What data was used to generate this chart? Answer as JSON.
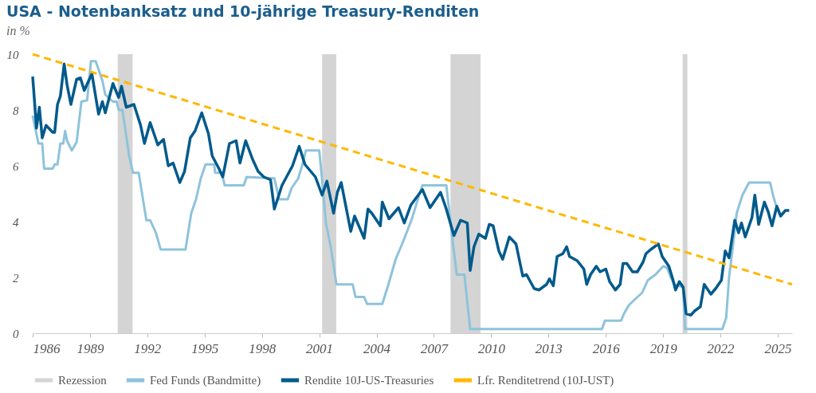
{
  "chart_data": {
    "type": "line",
    "title": "USA - Notenbanksatz und 10-jährige Treasury-Renditen",
    "subtitle": "in %",
    "xlim": [
      1986,
      2025.75
    ],
    "xticks": [
      1986,
      1989,
      1992,
      1995,
      1998,
      2001,
      2004,
      2007,
      2010,
      2013,
      2016,
      2019,
      2022,
      2025
    ],
    "ylim": [
      0,
      10
    ],
    "yticks": [
      0,
      2,
      4,
      6,
      8,
      10
    ],
    "legend": "bottom",
    "bands": [
      {
        "axis": "x",
        "from": 1990.45,
        "to": 1991.23,
        "label": "Rezession",
        "color": "#d4d4d4"
      },
      {
        "axis": "x",
        "from": 2001.15,
        "to": 2001.89,
        "color": "#d4d4d4"
      },
      {
        "axis": "x",
        "from": 2007.87,
        "to": 2009.44,
        "color": "#d4d4d4"
      },
      {
        "axis": "x",
        "from": 2020.02,
        "to": 2020.27,
        "color": "#d4d4d4"
      }
    ],
    "series": [
      {
        "name": "Fed Funds (Bandmitte)",
        "color": "#8ec3dc",
        "x": [
          1986.0,
          1986.3,
          1986.5,
          1986.6,
          1987.05,
          1987.15,
          1987.3,
          1987.45,
          1987.6,
          1987.7,
          1987.8,
          1988.05,
          1988.3,
          1988.55,
          1988.85,
          1989.05,
          1989.3,
          1989.65,
          1989.8,
          1990.2,
          1990.4,
          1990.5,
          1990.7,
          1991.05,
          1991.25,
          1991.55,
          1991.95,
          1992.15,
          1992.45,
          1992.7,
          1994.0,
          1994.3,
          1994.55,
          1994.8,
          1995.05,
          1995.5,
          1995.55,
          1995.9,
          1996.05,
          1997.05,
          1997.2,
          1998.65,
          1998.9,
          1999.35,
          1999.55,
          1999.9,
          2000.1,
          2000.3,
          2001.0,
          2001.15,
          2001.35,
          2001.6,
          2001.9,
          2002.75,
          2002.9,
          2003.35,
          2003.5,
          2004.3,
          2004.6,
          2005.0,
          2005.4,
          2005.85,
          2006.25,
          2006.4,
          2007.65,
          2008.0,
          2008.2,
          2008.6,
          2008.75,
          2008.9,
          2015.8,
          2015.95,
          2016.8,
          2016.95,
          2017.2,
          2017.5,
          2017.9,
          2018.2,
          2018.6,
          2019.0,
          2019.2,
          2019.4,
          2019.6,
          2020.05,
          2020.15,
          2022.1,
          2022.3,
          2022.45,
          2022.65,
          2022.85,
          2023.15,
          2023.5,
          2024.6,
          2024.75,
          2024.9,
          2025.05
        ],
        "values": [
          7.8,
          6.8,
          6.8,
          5.9,
          5.9,
          6.05,
          6.05,
          6.8,
          6.8,
          7.25,
          6.9,
          6.55,
          6.85,
          8.3,
          8.35,
          9.75,
          9.75,
          9.05,
          8.55,
          8.3,
          8.3,
          8.0,
          8.0,
          6.35,
          5.75,
          5.75,
          4.05,
          4.05,
          3.6,
          3.0,
          3.0,
          4.3,
          4.8,
          5.55,
          6.05,
          6.05,
          5.75,
          5.75,
          5.3,
          5.3,
          5.6,
          5.55,
          4.8,
          4.8,
          5.2,
          5.55,
          6.0,
          6.55,
          6.55,
          5.5,
          3.95,
          3.1,
          1.75,
          1.75,
          1.3,
          1.3,
          1.05,
          1.05,
          1.7,
          2.65,
          3.3,
          4.1,
          5.0,
          5.3,
          5.3,
          3.2,
          2.1,
          2.1,
          1.1,
          0.15,
          0.15,
          0.45,
          0.45,
          0.7,
          1.0,
          1.2,
          1.45,
          1.9,
          2.1,
          2.4,
          2.35,
          2.0,
          1.75,
          1.65,
          0.15,
          0.15,
          0.55,
          2.0,
          3.1,
          4.3,
          4.95,
          5.4,
          5.4,
          4.95,
          4.6,
          4.4
        ]
      },
      {
        "name": "Rendite 10J-US-Treasuries",
        "color": "#005a8c",
        "x": [
          1986.0,
          1986.2,
          1986.35,
          1986.5,
          1986.7,
          1987.05,
          1987.15,
          1987.3,
          1987.45,
          1987.65,
          1987.8,
          1988.0,
          1988.3,
          1988.5,
          1988.7,
          1989.1,
          1989.45,
          1989.65,
          1989.8,
          1990.2,
          1990.5,
          1990.65,
          1990.9,
          1991.3,
          1991.65,
          1991.85,
          1992.15,
          1992.55,
          1992.85,
          1993.1,
          1993.35,
          1993.7,
          1993.95,
          1994.25,
          1994.5,
          1994.85,
          1995.2,
          1995.4,
          1995.75,
          1995.95,
          1996.3,
          1996.65,
          1996.85,
          1997.15,
          1997.5,
          1997.8,
          1998.1,
          1998.45,
          1998.65,
          1999.05,
          1999.6,
          1999.95,
          2000.25,
          2000.8,
          2001.15,
          2001.4,
          2001.75,
          2001.95,
          2002.15,
          2002.65,
          2002.85,
          2003.35,
          2003.55,
          2003.75,
          2004.2,
          2004.3,
          2004.65,
          2005.15,
          2005.45,
          2005.8,
          2006.4,
          2006.8,
          2007.35,
          2007.65,
          2008.05,
          2008.4,
          2008.75,
          2008.9,
          2009.1,
          2009.35,
          2009.7,
          2009.9,
          2010.1,
          2010.4,
          2010.6,
          2010.95,
          2011.3,
          2011.65,
          2011.85,
          2012.25,
          2012.5,
          2012.9,
          2013.05,
          2013.25,
          2013.45,
          2013.75,
          2013.95,
          2014.1,
          2014.5,
          2014.85,
          2015.0,
          2015.2,
          2015.5,
          2015.7,
          2016.0,
          2016.2,
          2016.5,
          2016.75,
          2016.9,
          2017.1,
          2017.4,
          2017.65,
          2017.95,
          2018.1,
          2018.35,
          2018.55,
          2018.75,
          2018.95,
          2019.3,
          2019.5,
          2019.65,
          2019.85,
          2020.05,
          2020.2,
          2020.45,
          2020.65,
          2020.95,
          2021.15,
          2021.5,
          2021.75,
          2022.05,
          2022.25,
          2022.45,
          2022.75,
          2022.95,
          2023.1,
          2023.3,
          2023.65,
          2023.8,
          2024.0,
          2024.3,
          2024.5,
          2024.7,
          2024.95,
          2025.15,
          2025.4,
          2025.6
        ],
        "values": [
          9.2,
          7.35,
          8.1,
          7.0,
          7.45,
          7.2,
          7.2,
          8.2,
          8.5,
          9.65,
          8.9,
          8.2,
          9.1,
          9.15,
          8.7,
          9.3,
          7.85,
          8.3,
          7.9,
          8.95,
          8.45,
          8.85,
          8.1,
          8.2,
          7.45,
          6.8,
          7.55,
          6.75,
          6.95,
          6.0,
          6.1,
          5.4,
          5.8,
          7.0,
          7.25,
          7.9,
          7.15,
          6.35,
          5.9,
          5.6,
          6.8,
          6.9,
          6.1,
          6.9,
          6.25,
          5.8,
          5.6,
          5.5,
          4.45,
          5.3,
          6.0,
          6.7,
          6.05,
          5.6,
          4.95,
          5.45,
          4.3,
          5.05,
          5.4,
          3.65,
          4.2,
          3.4,
          4.45,
          4.3,
          3.85,
          4.7,
          4.1,
          4.5,
          3.95,
          4.6,
          5.15,
          4.5,
          5.05,
          4.45,
          3.5,
          4.05,
          3.95,
          2.25,
          3.1,
          3.55,
          3.4,
          3.9,
          3.85,
          2.95,
          2.65,
          3.45,
          3.2,
          2.05,
          2.1,
          1.6,
          1.55,
          1.75,
          1.95,
          1.7,
          2.75,
          2.85,
          3.1,
          2.75,
          2.6,
          2.3,
          1.75,
          2.1,
          2.4,
          2.2,
          2.3,
          1.85,
          1.55,
          1.75,
          2.5,
          2.5,
          2.2,
          2.2,
          2.55,
          2.85,
          3.0,
          3.1,
          3.2,
          2.75,
          2.4,
          1.95,
          1.55,
          1.85,
          1.65,
          0.7,
          0.65,
          0.8,
          0.95,
          1.75,
          1.4,
          1.6,
          1.9,
          2.95,
          2.7,
          4.05,
          3.6,
          3.95,
          3.45,
          4.15,
          4.95,
          3.9,
          4.7,
          4.35,
          3.85,
          4.55,
          4.2,
          4.4,
          4.4
        ]
      },
      {
        "name": "Lfr. Renditetrend (10J-UST)",
        "type": "line",
        "line_style": "dashed",
        "color": "#ffb800",
        "x": [
          1986,
          2025.75
        ],
        "values": [
          10,
          1.75
        ]
      }
    ]
  }
}
